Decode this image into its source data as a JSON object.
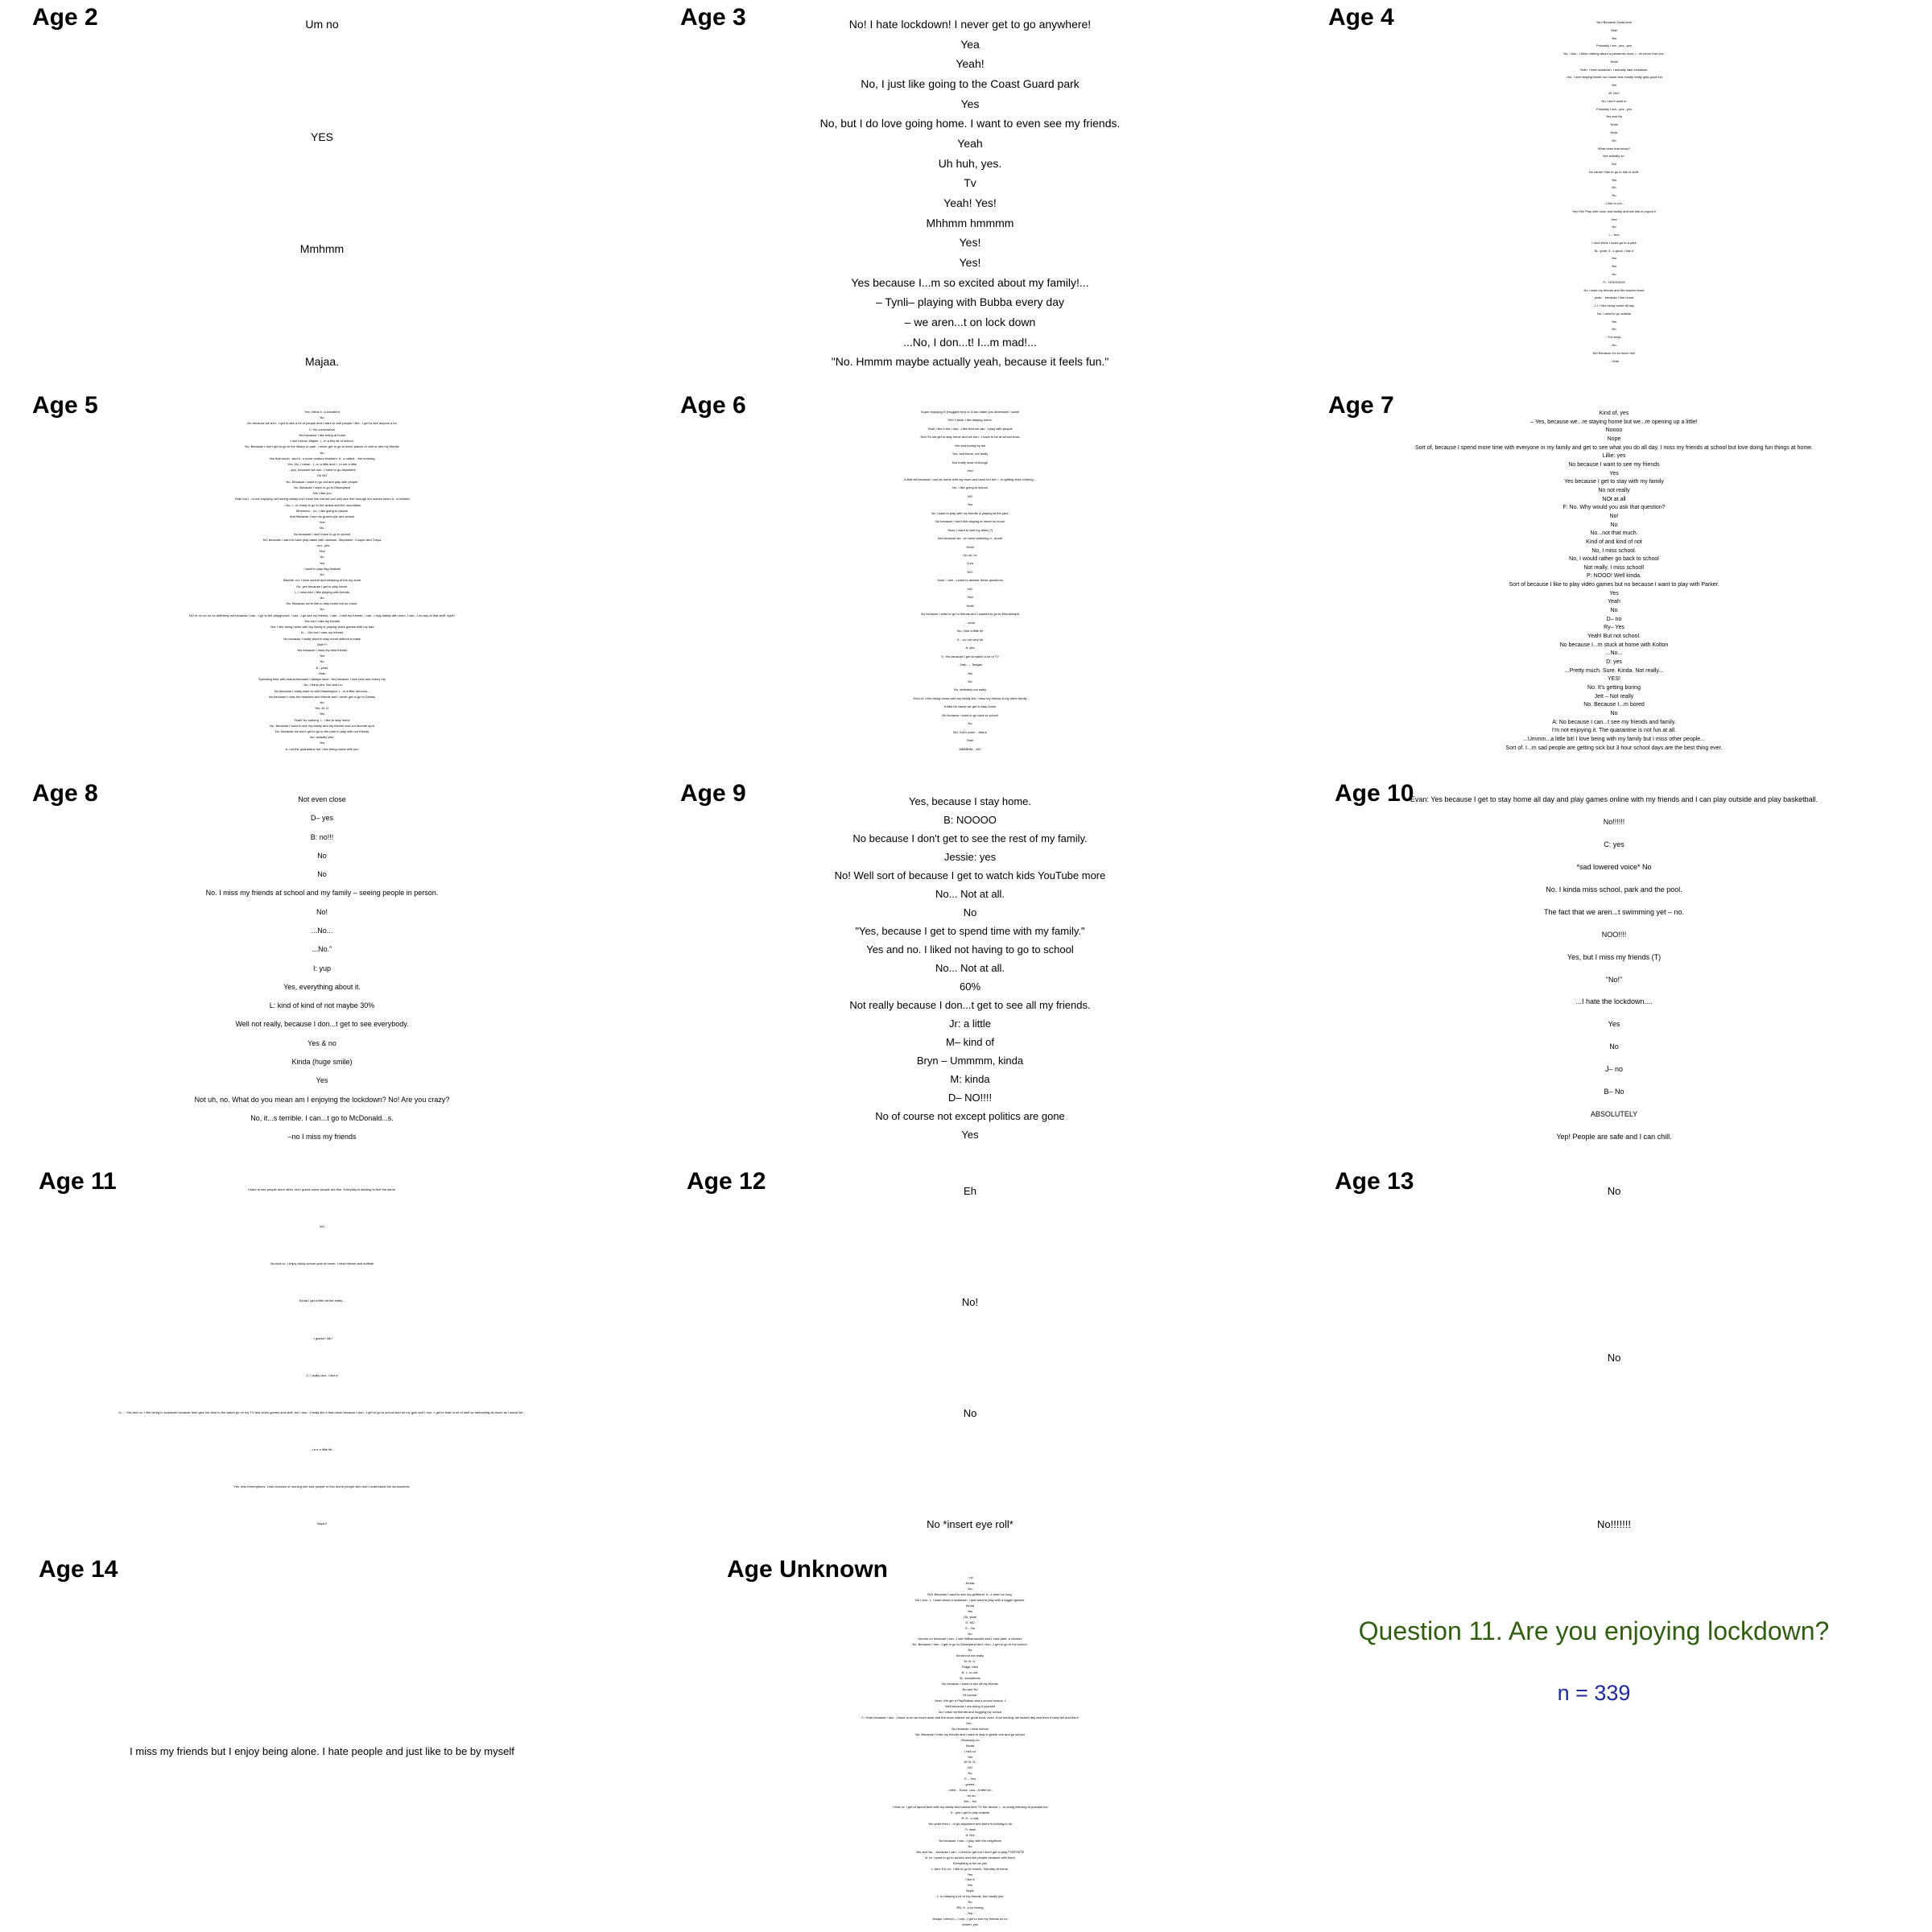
{
  "question": {
    "title": "Question 11. Are you enjoying lockdown?",
    "n": "n = 339",
    "title_color": "#2e5e0e",
    "n_color": "#1f2aa0"
  },
  "panels": [
    {
      "title": "Age 2",
      "responses": [
        "Um no",
        "YES",
        "Mmhmm",
        "Majaa."
      ]
    },
    {
      "title": "Age 3",
      "responses": [
        "No! I hate lockdown! I never get to go anywhere!",
        "Yea",
        "Yeah!",
        "No, I just like going to the Coast Guard park",
        "Yes",
        "No, but I do love going home. I want to even see my friends.",
        "Yeah",
        "Uh huh, yes.",
        "Tv",
        "Yeah! Yes!",
        "Mhhmm hmmmm",
        "Yes!",
        "Yes!",
        "Yes because I...m so excited about my family!...",
        "– Tynli– playing with Bubba every day",
        "– we aren...t on lock down",
        "...No, I don...t! I...m mad!...",
        "\"No. Hmmm maybe actually yeah, because it feels fun.\""
      ]
    },
    {
      "title": "Age 4",
      "responses": [
        "Yep! Because Dada here",
        "Yeah",
        "Yes",
        "Probably I am...yes...yes",
        "No, I don...t think nothing about a pandemic virus, I...ve never had one.",
        "Yeah!",
        "Yeah. I hate lockdown. I actually hate lockdown.",
        "...No. I love staying inside our house and mostly really gets good fun.",
        "Yes",
        "W: No!!",
        "No I don't want to",
        "Probably I am...yes...yes",
        "Yes and No",
        "Yeah!",
        "Yeah.",
        "No",
        "What does that mean?",
        "Not actually so.",
        "No!",
        "No cause I like to go to lots of stuff.",
        "Yes",
        "No",
        "No",
        "...I like to run...",
        "Yep! No! Play with mom and daddy and eat lots of popcorn",
        "Yes!",
        "No",
        "I – Yes!",
        "I don't think I could go to a park",
        "M– yeah, it...s good, I like it",
        "Yes",
        "Yes",
        "No",
        "P– YESSSSSS",
        "No I want my friends and the teacher back",
        "yeah... because I like home",
        "J.J. I like being home all day",
        "No, I want to go outside",
        "Yes",
        "No",
        "...The boys...",
        "...No...",
        "No! Because it's so much fun!",
        "...Yeah"
      ]
    },
    {
      "title": "Age 5",
      "responses": [
        "Yes I think it...s excellent",
        "No",
        "No because we don...t get to see a lot of people and I want to visit people I like...I get to see anyone a lot",
        "C: No coronavirus",
        "Yes because I like being at home",
        "I don't know. Maybe. I...m a tiny bit of school.",
        "No. Because I don't get to go to the library or park. I never get to go to lunch places or visit or see my friends",
        "No",
        "Yes that much...and it...s more outdoor freedom. It...s called ...the morning",
        "Yes. No, I mean...I...m a little and I...m not a little",
        "...yep, because we don...t have to go anywhere",
        "Oh NO",
        "No. Because I want to go out and play with people",
        "No. Because I want to go to Disneyland",
        "Yes I like you",
        "Yeah but I...m not enjoying not having daddy but I have him but we can only see him through our screen when it...s needed",
        "...No. I...m ready to go to the island and the mountains",
        "Mmmmm... no. I like going to places",
        "And Because I see my grown-ups and school",
        "Yes!",
        "No.",
        "No because I don't have to go to school",
        "NO because I want to have play dates with Jackson, Stephanie, Cooper and Tonya",
        "...um...yes",
        "Yes!",
        "No",
        "Yes",
        "I want to play flag football",
        "No",
        "Maddie: no! I miss school and sleeping at the toy store",
        "Oh, yes because I get to stay home.",
        "L: I miss him! I like playing with friends",
        "No",
        "No. Because we're like to stay home but so much.",
        "No",
        "NO or no no no no definitely not because I can...t go to the playground, I can...t go see my friends, I can...t visit my friends. I can...t hug daddy with mom, I can...t do any of that stuff, right?",
        "Yes but I miss my friends",
        "Yes. I like being home with my family & playing video games with my dad",
        "N... –No but I miss my friends",
        "No because I really want to stay home without a mask",
        "Both?!",
        "Yes because I miss my best friends",
        "Yes",
        "No",
        "E– yeah",
        "Yeah",
        "Spending time with mama because I always have. Yes because I love pink and cherry cry",
        "...No, I think yes. Not and no.",
        "No because I really want to visit Washington. I...m a little nervous...",
        "No because I miss the beaches and friends and I never get to go to Disney",
        "No",
        "Yes, M: G:",
        "Yes",
        "Yeah! No nothing, I...I like to stay home",
        "No. Because I want to see my family and my friends and our favorite spot",
        "No. Because we don't get to go to the park to play with our friends",
        "No, actually yes!",
        "Yes",
        "A: not the quarantine but I like being home with you"
      ]
    },
    {
      "title": "Age 6",
      "responses": [
        "Super enjoying it! (Hugged him) or it can make you otherwise! I want!",
        "Yes! Cause I like staying home.",
        "Yeah I like it but I don...t like that we can...t play with people",
        "Not! So we get to stay home and we don...t have to be at school boss",
        "Yes and boring by me",
        "Yes, and kinda, not really",
        "Not really most of though",
        "Yes!",
        "A little bit because I can be home with my mum and have fun but I...m getting tired of being...",
        "No. I like going to school",
        "NO",
        "Yes",
        "No I want to play with my friends & playing at the park",
        "No because I don't like staying at home so much",
        "Yeah, I want to visit my mimi (?)",
        "Not because we...re home watching n...dumb",
        "Yeah!",
        "Uh uh, no",
        "A lot",
        "NO!",
        "Yeah. I don...t want to answer these questions",
        "NO",
        "Yes!",
        "Yeah!",
        "No because I want to go to friends and I wanted to go to Wonderland",
        "...umm",
        "No, I like a little bit",
        "S – no not very bit",
        "A: yes",
        "S: Yes because I get to watch a lot of TV",
        "...Nah...– Teagan",
        "Yes",
        "No",
        "No, definitely not sadly",
        "Kind of. I like being home with my family but I miss my friends & my other family",
        "A little bit cause we get to stay home",
        "No because I want to go back to school",
        "No",
        "NO. Kid's outer ...future",
        "Yeah",
        "MMMMM... NO"
      ]
    },
    {
      "title": "Age 7",
      "responses": [
        "Kind of, yes",
        "– Yes, because we...re staying home but we...re opening up a little!",
        "Noooo",
        "Nope",
        "Sort of, because I spend more time with everyone in my family and get to see what you do all day. I miss my friends at school but love doing fun things at home.",
        "Lillie: yes",
        "No because I want to see my friends",
        "Yes",
        "Yes because I get to stay with my family",
        "No not really",
        "NOt at all",
        "F: No. Why would you ask that question?",
        "No!",
        "No",
        "No...not that much.",
        "Kind of and kind of not",
        "No, I miss school.",
        "No, I would rather go back to school",
        "Not really. I miss school!",
        "P: NOOO! Well kinda.",
        "Sort of because I like to play video games but no because I want to play with Parker.",
        "Yes",
        "Yeah",
        "No",
        "D– no",
        "Ry– Yes",
        "Yeah! But not school.",
        "No because I...m stuck at home with Kolton",
        "...No...",
        "D: yes",
        "...Pretty much. Sure. Kinda. Not really...",
        "YES!",
        "No. It's getting boring",
        "Jett – Not really",
        "No. Because I...m bored",
        "No",
        "A: No because I can...t see my friends and family.",
        "I'm not enjoying it. The quarantine is not fun at all.",
        "...Ummm...a little bit! I love being with my family but I miss other people...",
        "Sort of. I...m sad people are getting sick but 3 hour school days are the best thing ever."
      ]
    },
    {
      "title": "Age 8",
      "responses": [
        "Not even close",
        "D– yes",
        "B: no!!!",
        "No",
        "No",
        "No. I miss my friends at school and my family – seeing people in person.",
        "No!",
        "...No...",
        "...No.\"",
        "I: yup",
        "Yes, everything about it.",
        "L: kind of kind of not maybe 30%",
        "Well not really, because I don...t get to see everybody.",
        "Yes & no",
        "Kinda (huge smile)",
        "Yes",
        "Not uh, no. What do you mean am I enjoying the lockdown? No! Are you crazy?",
        "No, it...s terrible. I can...t go to McDonald...s.",
        "–no I miss my friends"
      ]
    },
    {
      "title": "Age 9",
      "responses": [
        "Yes, because I stay home.",
        "B: NOOOO",
        "No  because I don't get to see the rest of my family.",
        "Jessie: yes",
        "No! Well sort of because I get to watch kids YouTube more",
        "No... Not at all.",
        "No",
        "\"Yes, because I get to spend time with my family.\"",
        "Yes and no. I liked not having to go to school",
        "No... Not at all.",
        "60%",
        "Not really because I don...t get to see all my friends.",
        "Jr: a little",
        "M– kind of",
        "Bryn – Ummmm, kinda",
        "M: kinda",
        "D– NO!!!!",
        "No of course not except politics are gone",
        "Yes"
      ]
    },
    {
      "title": "Age 10",
      "responses": [
        "Evan: Yes because I get to stay home all day and play games online with my friends and I can play outside and play basketball.",
        "No!!!!!!",
        "C: yes",
        "*sad lowered voice* No",
        "No. I kinda miss school, park and the pool.",
        "The fact that we aren...t swimming yet –  no.",
        "NOO!!!!",
        "Yes, but I miss my friends (T)",
        "\"No!\"",
        "...I hate the lockdown....",
        "Yes",
        "No",
        "J– no",
        "B– No",
        "ABSOLUTELY",
        "Yep! People are safe and I can chill."
      ]
    },
    {
      "title": "Age 11",
      "responses": [
        "I want to see people more often, but I guess some people are fine. Everyday is starting to feel the same.",
        "NO",
        "No and no. I enjoy doing school year at home. I miss friends and softball",
        "Kinda I get a little bit but really...",
        "...I guess? Idk?",
        "C: I really don...t like it",
        "D– ...Yes and no. I like being in lockdown because then give me time to the watch go on my TV and video games and stuff, but I don...t really like it that much because I don...t get to go to school and do my gym and I don...t get to learn a lot of stuff so interesting as much as I would be...",
        "...I.e.e a little bit...",
        "Yes, less interruptions. Less chances of running into sick people or into dumb people who don't understand the seriousness.",
        "Nope!!"
      ]
    },
    {
      "title": "Age 12",
      "responses": [
        "Eh",
        "No!",
        "No",
        "No *insert eye roll*"
      ]
    },
    {
      "title": "Age 13",
      "responses": [
        "No",
        "No",
        "No!!!!!!!"
      ]
    },
    {
      "title": "Age 14",
      "responses": [
        "I miss my friends but I enjoy being alone. I hate people and just like to be by myself"
      ]
    },
    {
      "title": "Age Unknown",
      "responses": [
        "...no",
        "...Kinda...",
        "...No...",
        "NO! Because I want to see my girlfriend. It...s been so long.",
        "No I don...t. I want about a lockdown. I just want to play with a bigger garden.",
        "Kinda",
        "Yes",
        "Ok, yeah",
        "G: NO",
        "S – No",
        "No",
        "Ummm no because I can...t see Williamsworld and I miss park, a chicken",
        "No. Because I don...t get to go to Disneyland and I don...t get to go to fun school.",
        "No",
        "Kinda but not really",
        "M: N: G:",
        "Paige: Meh",
        "B: I...m not.",
        "B– sometimes",
        "No because I want to see all my friends",
        "No and No",
        "Of course.",
        "...Yeah. We get a PlayStation and a school lesson. I...",
        "Well because I am doing it yourself",
        "No I miss my friends and hugging my school",
        "C: Yeah because I don...t have to do as much work and the most chance we great food, even. A lot hunting. we kicked day and then it rainy fell and then!",
        "Um...",
        "No because I miss school",
        "No. Because I miss my friends and I want to stay in grade one and go school",
        "Obviously no",
        "Kinda",
        "I hell no",
        "Yes",
        "M: N: G:",
        "NO",
        "No",
        "E – Yes",
        "...yeeee...",
        "...Meh... Sorta...ooo...A little bit...",
        "...Im an",
        "Yes – No",
        "I think of. I get to spend time with my family and lowest time TV the device. I...m doing learning at podcast too",
        "K...yes I get to play outside",
        "R: H...o nay",
        "Yes yeah then I...m go anywhere and there is nothing to do",
        "O: neat",
        "A: Not",
        "No because I can...t play with the neighbors",
        "No",
        "Yes and No... because I can...t need to get out I don't get to play FORTNITE",
        "N' no I want to go to picnics and see people because with them",
        "Everything is fun as yes",
        "L Jam: Eh, no. I like to go to church. Not stay at home.",
        "Yes",
        "I like it",
        "Yes",
        "Nope",
        "L: in missing a lot of my friends, but mostly yes",
        "No",
        "RD: it...s so boring",
        "...Yep...",
        "Anaya: Ummm – I can...t get to see my friends so no",
        "Ansen: yes"
      ]
    }
  ]
}
